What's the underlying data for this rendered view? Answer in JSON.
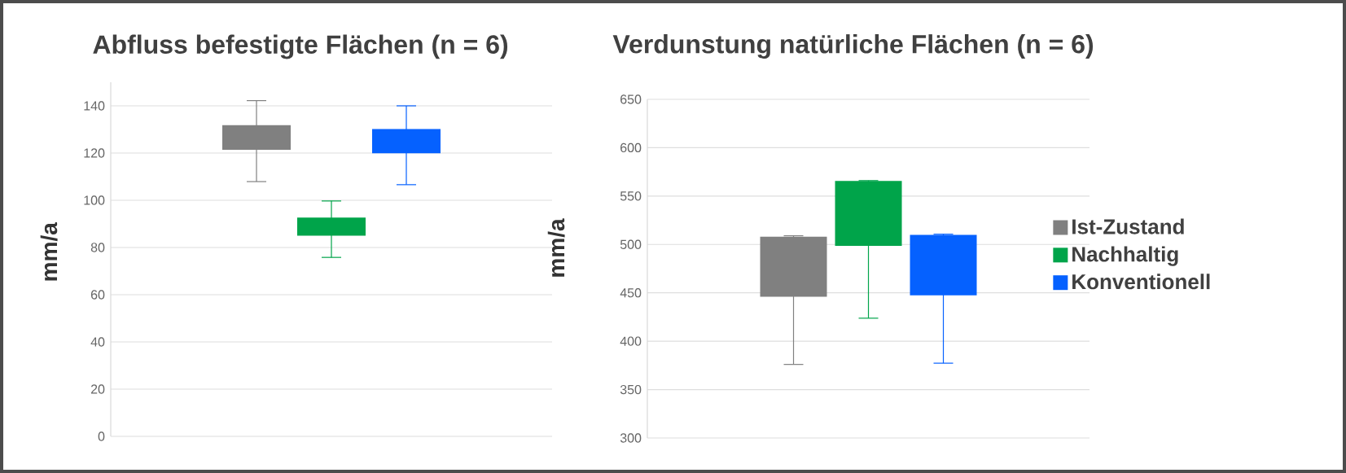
{
  "chart_data": [
    {
      "type": "bar",
      "title": "Abfluss befestigte Flächen (n = 6)",
      "ylabel": "mm/a",
      "categories": [
        null
      ],
      "ylim": [
        0,
        150
      ],
      "yticks": [
        0,
        20,
        40,
        60,
        80,
        100,
        120,
        140
      ],
      "grid": "y",
      "tick_labels": "y",
      "series": [
        {
          "color": "#808080",
          "base": [
            121.4
          ],
          "values": [
            10.4
          ],
          "errors": [
            [
              107.9,
              142.2
            ]
          ]
        },
        {
          "color": "#00a44a",
          "base": [
            85
          ],
          "values": [
            7.7
          ],
          "errors": [
            [
              75.8,
              99.7
            ]
          ]
        },
        {
          "color": "#0561ff",
          "base": [
            119.9
          ],
          "values": [
            10.3
          ],
          "errors": [
            [
              106.6,
              140
            ]
          ]
        }
      ]
    },
    {
      "type": "bar",
      "title": "Verdunstung natürliche Flächen (n = 6)",
      "ylabel": "mm/a",
      "categories": [
        null
      ],
      "ylim": [
        300,
        650
      ],
      "yticks": [
        300,
        350,
        400,
        450,
        500,
        550,
        600,
        650
      ],
      "grid": "y",
      "tick_labels": "y",
      "legend": "right",
      "series": [
        {
          "name": "Ist-Zustand",
          "color": "#808080",
          "base": [
            446
          ],
          "values": [
            62
          ],
          "errors": [
            [
              376,
              509
            ]
          ]
        },
        {
          "name": "Nachhaltig",
          "color": "#00a44a",
          "base": [
            498.6
          ],
          "values": [
            67
          ],
          "errors": [
            [
              423.8,
              566
            ]
          ]
        },
        {
          "name": "Konventionell",
          "color": "#0561ff",
          "base": [
            447.5
          ],
          "values": [
            62.5
          ],
          "errors": [
            [
              377.3,
              510.6
            ]
          ]
        }
      ]
    }
  ]
}
